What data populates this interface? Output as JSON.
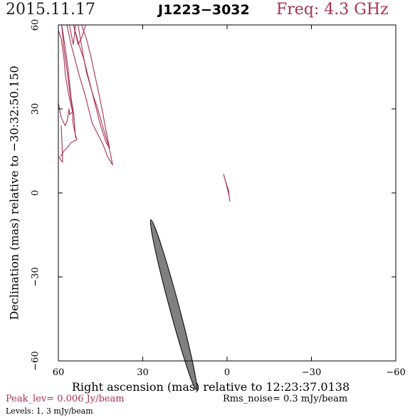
{
  "header": {
    "date": "2015.11.17",
    "source": "J1223−3032",
    "freq": "Freq: 4.3 GHz"
  },
  "footer": {
    "peak": "Peak_lev=  0.006 Jy/beam",
    "rms": "Rms_noise=  0.3 mJy/beam",
    "levels": "Levels:   1,   3 mJy/beam"
  },
  "colors": {
    "contour": "#a8324f",
    "beam": "#808080"
  },
  "chart_data": {
    "type": "contour",
    "title": "J1223−3032",
    "xlabel": "Right ascension (mas) relative to 12:23:37.0138",
    "ylabel": "Declination (mas) relative to −30:32:50.150",
    "xlim": [
      60,
      -60
    ],
    "ylim": [
      -60,
      60
    ],
    "xticks": [
      60,
      30,
      0,
      -30,
      -60
    ],
    "xtick_labels": [
      "60",
      "30",
      "0",
      "−30",
      "−60"
    ],
    "yticks": [
      60,
      30,
      0,
      -30,
      -60
    ],
    "ytick_labels": [
      "60",
      "30",
      "0",
      "−30",
      "−60"
    ],
    "contour_levels_mJy_per_beam": [
      1,
      3
    ],
    "peak_Jy_per_beam": 0.006,
    "rms_noise_mJy_per_beam": 0.3,
    "contours": [
      {
        "points": [
          [
            59.2,
            13
          ],
          [
            58,
            15
          ],
          [
            56.5,
            16.5
          ],
          [
            55.5,
            18
          ],
          [
            53.4,
            19
          ],
          [
            54,
            21
          ],
          [
            54.5,
            28
          ],
          [
            55.5,
            34
          ],
          [
            56.5,
            44
          ],
          [
            57.6,
            52
          ],
          [
            58.8,
            60
          ]
        ]
      },
      {
        "points": [
          [
            58.8,
            60
          ],
          [
            58.2,
            53
          ],
          [
            56.8,
            43
          ],
          [
            55.8,
            35
          ],
          [
            55,
            30
          ],
          [
            54.8,
            25
          ],
          [
            54.2,
            22
          ],
          [
            53.8,
            19.5
          ]
        ]
      },
      {
        "points": [
          [
            59.8,
            13
          ],
          [
            59,
            11.5
          ],
          [
            58.5,
            11
          ],
          [
            58.6,
            15
          ],
          [
            59,
            24
          ]
        ]
      },
      {
        "points": [
          [
            60,
            32
          ],
          [
            59,
            27
          ],
          [
            57.6,
            24
          ],
          [
            56.8,
            26
          ],
          [
            56.2,
            30
          ],
          [
            56,
            28
          ],
          [
            55,
            29
          ],
          [
            56.5,
            36
          ],
          [
            57.5,
            42
          ],
          [
            58,
            48
          ],
          [
            59,
            55
          ],
          [
            60,
            58
          ]
        ]
      },
      {
        "points": [
          [
            57,
            60
          ],
          [
            55.5,
            53
          ],
          [
            52.6,
            42
          ],
          [
            50.5,
            35
          ],
          [
            48,
            25
          ],
          [
            45.5,
            20
          ],
          [
            44,
            17
          ],
          [
            42.5,
            13
          ],
          [
            40.7,
            10
          ],
          [
            41.5,
            14
          ],
          [
            42.5,
            18
          ],
          [
            44,
            23
          ],
          [
            46,
            30
          ],
          [
            48,
            36
          ],
          [
            50,
            43
          ],
          [
            51.5,
            51
          ],
          [
            53,
            60
          ]
        ]
      },
      {
        "points": [
          [
            51.8,
            60
          ],
          [
            50,
            55
          ],
          [
            48.5,
            49
          ],
          [
            47,
            42
          ],
          [
            45.5,
            35
          ],
          [
            44.3,
            29
          ],
          [
            43,
            22
          ],
          [
            41.8,
            16
          ],
          [
            43,
            18
          ],
          [
            45,
            24
          ],
          [
            47,
            32
          ],
          [
            49,
            40
          ],
          [
            51,
            48
          ],
          [
            52.7,
            53
          ],
          [
            54.6,
            60
          ]
        ]
      },
      {
        "points": [
          [
            50.3,
            60
          ],
          [
            51.5,
            56
          ],
          [
            53,
            53
          ],
          [
            54.6,
            60
          ],
          [
            53.9,
            60
          ],
          [
            54.7,
            53
          ],
          [
            55.5,
            57
          ],
          [
            56.1,
            60
          ]
        ]
      },
      {
        "points": [
          [
            1.2,
            6.5
          ],
          [
            0.5,
            4
          ],
          [
            -0.5,
            1
          ],
          [
            -1,
            -3
          ],
          [
            -0.7,
            -1
          ],
          [
            0,
            2
          ],
          [
            0.8,
            5
          ],
          [
            1.3,
            6.8
          ]
        ]
      }
    ],
    "beam": {
      "x": 19,
      "y": -40,
      "major_mas": 31.5,
      "minor_mas": 1.7,
      "pa_deg": -15
    }
  }
}
